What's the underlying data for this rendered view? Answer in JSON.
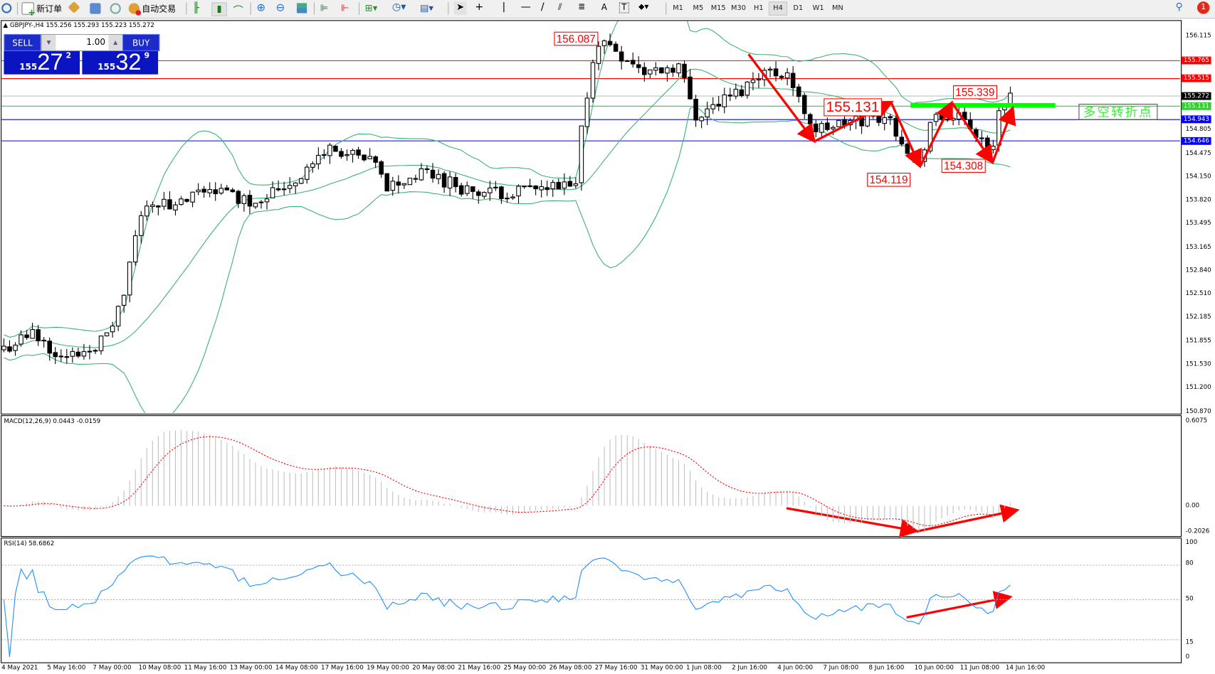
{
  "toolbar": {
    "new_order": "新订单",
    "auto_trading": "自动交易",
    "timeframes": [
      "M1",
      "M5",
      "M15",
      "M30",
      "H1",
      "H4",
      "D1",
      "W1",
      "MN"
    ],
    "active_timeframe": "H4",
    "notification_count": "1"
  },
  "chart_header": {
    "symbol": "GBPJPY-,H4",
    "ohlc": "155.256 155.293 155.223 155.272"
  },
  "trade_panel": {
    "sell_label": "SELL",
    "buy_label": "BUY",
    "lot": "1.00",
    "sell_big": "155",
    "sell_price": "27",
    "sell_sup": "2",
    "buy_big": "155",
    "buy_price": "32",
    "buy_sup": "9"
  },
  "price_axis": {
    "ticks": [
      "156.115",
      "154.805",
      "154.475",
      "154.150",
      "153.820",
      "153.495",
      "153.165",
      "152.840",
      "152.510",
      "152.185",
      "151.855",
      "151.530",
      "151.200",
      "150.870"
    ],
    "tags": [
      {
        "value": "155.765",
        "color": "#ff0000"
      },
      {
        "value": "155.515",
        "color": "#ff0000"
      },
      {
        "value": "155.272",
        "color": "#000000"
      },
      {
        "value": "155.131",
        "color": "#32cd32"
      },
      {
        "value": "154.943",
        "color": "#0000ff"
      },
      {
        "value": "154.646",
        "color": "#0000ff"
      }
    ]
  },
  "annotations": {
    "high_label": "156.087",
    "neck_label": "155.131",
    "recent_high_label": "155.339",
    "low2_label": "154.308",
    "low1_label": "154.119",
    "pivot_text": "多空转折点"
  },
  "macd": {
    "label": "MACD(12,26,9) 0.0443 -0.0159",
    "ticks": [
      "0.6075",
      "0.00",
      "-0.2026"
    ]
  },
  "rsi": {
    "label": "RSI(14) 58.6862",
    "ticks": [
      "100",
      "80",
      "50",
      "15",
      "0"
    ]
  },
  "time_axis": [
    "4 May 2021",
    "5 May 16:00",
    "7 May 00:00",
    "10 May 08:00",
    "11 May 16:00",
    "13 May 00:00",
    "14 May 08:00",
    "17 May 16:00",
    "19 May 00:00",
    "20 May 08:00",
    "21 May 16:00",
    "25 May 00:00",
    "26 May 08:00",
    "27 May 16:00",
    "31 May 00:00",
    "1 Jun 08:00",
    "2 Jun 16:00",
    "4 Jun 00:00",
    "7 Jun 08:00",
    "8 Jun 16:00",
    "10 Jun 00:00",
    "11 Jun 08:00",
    "14 Jun 16:00"
  ],
  "chart_data": {
    "type": "candlestick",
    "symbol": "GBPJPY",
    "timeframe": "H4",
    "ylim": [
      150.87,
      156.115
    ],
    "bars": 177,
    "price_path": [
      {
        "bar": 0,
        "price": 151.75
      },
      {
        "bar": 5,
        "price": 151.95
      },
      {
        "bar": 11,
        "price": 151.6
      },
      {
        "bar": 18,
        "price": 151.9
      },
      {
        "bar": 21,
        "price": 152.5
      },
      {
        "bar": 23,
        "price": 153.3
      },
      {
        "bar": 25,
        "price": 153.82
      },
      {
        "bar": 30,
        "price": 153.7
      },
      {
        "bar": 36,
        "price": 154.0
      },
      {
        "bar": 43,
        "price": 153.8
      },
      {
        "bar": 51,
        "price": 154.1
      },
      {
        "bar": 57,
        "price": 154.55
      },
      {
        "bar": 65,
        "price": 154.3
      },
      {
        "bar": 67,
        "price": 154.0
      },
      {
        "bar": 74,
        "price": 154.2
      },
      {
        "bar": 83,
        "price": 153.9
      },
      {
        "bar": 91,
        "price": 153.95
      },
      {
        "bar": 100,
        "price": 154.0
      },
      {
        "bar": 101,
        "price": 154.8
      },
      {
        "bar": 103,
        "price": 155.8
      },
      {
        "bar": 105,
        "price": 156.05
      },
      {
        "bar": 112,
        "price": 155.6
      },
      {
        "bar": 118,
        "price": 155.7
      },
      {
        "bar": 121,
        "price": 155.0
      },
      {
        "bar": 129,
        "price": 155.35
      },
      {
        "bar": 132,
        "price": 155.6
      },
      {
        "bar": 137,
        "price": 155.6
      },
      {
        "bar": 139,
        "price": 155.2
      },
      {
        "bar": 142,
        "price": 154.8
      },
      {
        "bar": 154,
        "price": 155.0
      },
      {
        "bar": 156,
        "price": 154.8
      },
      {
        "bar": 160,
        "price": 154.3
      },
      {
        "bar": 162,
        "price": 154.9
      },
      {
        "bar": 166,
        "price": 155.0
      },
      {
        "bar": 170,
        "price": 154.75
      },
      {
        "bar": 173,
        "price": 154.5
      },
      {
        "bar": 174,
        "price": 155.1
      },
      {
        "bar": 176,
        "price": 155.3
      }
    ],
    "horizontal_lines": [
      {
        "price": 155.765,
        "color": "#ff0000"
      },
      {
        "price": 155.515,
        "color": "#ff0000"
      },
      {
        "price": 155.272,
        "color": "#c0c0c0"
      },
      {
        "price": 155.131,
        "color": "#32cd32"
      },
      {
        "price": 154.943,
        "color": "#0000ff"
      },
      {
        "price": 154.646,
        "color": "#0000ff"
      }
    ],
    "bollinger": {
      "period": 20,
      "deviation": 2,
      "color": "#3cb371"
    },
    "macd_params": {
      "fast": 12,
      "slow": 26,
      "signal": 9,
      "ylim": [
        -0.2026,
        0.6075
      ],
      "hist_color": "#c0c0c0",
      "signal_color": "#ff0000"
    },
    "rsi_params": {
      "period": 14,
      "levels": [
        80,
        50,
        15
      ],
      "ylim": [
        0,
        100
      ],
      "color": "#1e90ff"
    },
    "grid": false
  }
}
